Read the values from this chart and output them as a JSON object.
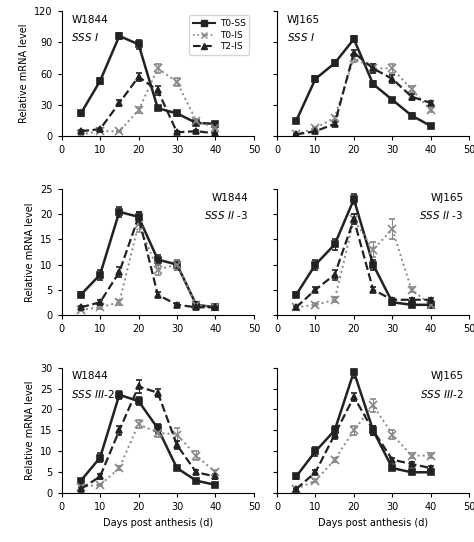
{
  "days": [
    5,
    10,
    15,
    20,
    25,
    30,
    35,
    40
  ],
  "panels": [
    {
      "title": "W1844",
      "gene_parts": [
        [
          "SSS ",
          "italic"
        ],
        [
          " I",
          "italic"
        ]
      ],
      "gene_display": "SSS I",
      "label_loc": "upper left",
      "ylim": [
        0,
        120
      ],
      "yticks": [
        0,
        30,
        60,
        90,
        120
      ],
      "series": {
        "T0-SS": [
          22,
          53,
          96,
          88,
          27,
          22,
          13,
          12
        ],
        "T0-IS": [
          2,
          5,
          5,
          25,
          65,
          52,
          15,
          8
        ],
        "T2-IS": [
          5,
          7,
          32,
          57,
          44,
          4,
          5,
          3
        ]
      },
      "errors": {
        "T0-SS": [
          2,
          3,
          3,
          4,
          2,
          2,
          1,
          1
        ],
        "T0-IS": [
          0.5,
          0.5,
          0.5,
          3,
          4,
          4,
          2,
          1
        ],
        "T2-IS": [
          1,
          1,
          3,
          4,
          4,
          1,
          1,
          0.5
        ]
      }
    },
    {
      "title": "WJ165",
      "gene_display": "SSS I",
      "label_loc": "upper left",
      "ylim": [
        0,
        120
      ],
      "yticks": [
        0,
        30,
        60,
        90,
        120
      ],
      "series": {
        "T0-SS": [
          15,
          55,
          70,
          93,
          50,
          35,
          20,
          10
        ],
        "T0-IS": [
          2,
          8,
          18,
          75,
          65,
          65,
          45,
          25
        ],
        "T2-IS": [
          2,
          5,
          12,
          80,
          65,
          55,
          38,
          32
        ]
      },
      "errors": {
        "T0-SS": [
          1,
          3,
          3,
          3,
          3,
          2,
          2,
          1
        ],
        "T0-IS": [
          0.5,
          1,
          2,
          4,
          4,
          4,
          3,
          2
        ],
        "T2-IS": [
          0.5,
          1,
          2,
          3,
          4,
          4,
          3,
          2
        ]
      }
    },
    {
      "title": "W1844",
      "gene_display": "SSS II -3",
      "label_loc": "upper right",
      "ylim": [
        0,
        25
      ],
      "yticks": [
        0,
        5,
        10,
        15,
        20,
        25
      ],
      "series": {
        "T0-SS": [
          4,
          8,
          20.5,
          19.5,
          11,
          10,
          2,
          1.5
        ],
        "T0-IS": [
          1,
          1.5,
          2.5,
          18,
          9,
          10,
          2,
          1.5
        ],
        "T2-IS": [
          1.5,
          2.5,
          8.5,
          19.5,
          4,
          2,
          1.5,
          1.5
        ]
      },
      "errors": {
        "T0-SS": [
          0.5,
          1,
          1,
          1,
          1,
          1,
          0.5,
          0.5
        ],
        "T0-IS": [
          0.2,
          0.3,
          0.5,
          1.5,
          1,
          1,
          0.3,
          0.3
        ],
        "T2-IS": [
          0.3,
          0.5,
          1,
          1,
          0.5,
          0.3,
          0.3,
          0.3
        ]
      }
    },
    {
      "title": "WJ165",
      "gene_display": "SSS II -3",
      "label_loc": "upper right",
      "ylim": [
        0,
        25
      ],
      "yticks": [
        0,
        5,
        10,
        15,
        20,
        25
      ],
      "series": {
        "T0-SS": [
          4,
          10,
          14,
          23,
          10,
          2.5,
          2,
          2
        ],
        "T0-IS": [
          1.5,
          2,
          3,
          19,
          13,
          17,
          5,
          2
        ],
        "T2-IS": [
          1.5,
          5,
          8,
          19,
          5,
          3,
          3,
          3
        ]
      },
      "errors": {
        "T0-SS": [
          0.5,
          1,
          1,
          1,
          1,
          0.5,
          0.3,
          0.3
        ],
        "T0-IS": [
          0.3,
          0.3,
          0.5,
          1,
          1.5,
          2,
          0.5,
          0.3
        ],
        "T2-IS": [
          0.3,
          0.5,
          1,
          1,
          0.5,
          0.3,
          0.3,
          0.3
        ]
      }
    },
    {
      "title": "W1844",
      "gene_display": "SSS III-2",
      "label_loc": "upper left",
      "ylim": [
        0,
        30
      ],
      "yticks": [
        0,
        5,
        10,
        15,
        20,
        25,
        30
      ],
      "series": {
        "T0-SS": [
          3,
          8.5,
          23.5,
          22,
          15.5,
          6,
          3,
          2
        ],
        "T0-IS": [
          1.5,
          2,
          6,
          16.5,
          14.5,
          14,
          9,
          5
        ],
        "T2-IS": [
          1,
          4,
          15,
          25.5,
          24,
          11.5,
          5,
          4
        ]
      },
      "errors": {
        "T0-SS": [
          0.5,
          1,
          1,
          1,
          1,
          0.5,
          0.3,
          0.3
        ],
        "T0-IS": [
          0.3,
          0.3,
          0.5,
          1,
          1,
          1.5,
          1,
          0.5
        ],
        "T2-IS": [
          0.3,
          0.5,
          1,
          1.5,
          1,
          1,
          0.5,
          0.5
        ]
      }
    },
    {
      "title": "WJ165",
      "gene_display": "SSS III-2",
      "label_loc": "upper right",
      "ylim": [
        0,
        30
      ],
      "yticks": [
        0,
        5,
        10,
        15,
        20,
        25,
        30
      ],
      "series": {
        "T0-SS": [
          4,
          10,
          15,
          29,
          15,
          6,
          5,
          5
        ],
        "T0-IS": [
          1,
          3,
          8,
          15,
          21,
          14,
          9,
          9
        ],
        "T2-IS": [
          1,
          5,
          14,
          23,
          15,
          8,
          7,
          6
        ]
      },
      "errors": {
        "T0-SS": [
          0.5,
          1,
          1,
          1.5,
          1,
          0.5,
          0.5,
          0.5
        ],
        "T0-IS": [
          0.2,
          0.3,
          0.5,
          1,
          1.5,
          1,
          0.5,
          0.5
        ],
        "T2-IS": [
          0.3,
          0.5,
          1,
          1,
          1,
          0.5,
          0.5,
          0.5
        ]
      }
    }
  ],
  "series_styles": {
    "T0-SS": {
      "color": "#222222",
      "linestyle": "-",
      "marker": "s",
      "linewidth": 1.8,
      "markersize": 4.5,
      "mfc": "#222222"
    },
    "T0-IS": {
      "color": "#888888",
      "linestyle": ":",
      "marker": "x",
      "linewidth": 1.4,
      "markersize": 5.5,
      "mfc": "none"
    },
    "T2-IS": {
      "color": "#222222",
      "linestyle": "--",
      "marker": "^",
      "linewidth": 1.6,
      "markersize": 4.5,
      "mfc": "#222222"
    }
  },
  "xlabel": "Days post anthesis (d)",
  "ylabel": "Relative mRNA level",
  "legend_labels": [
    "T0-SS",
    "T0-IS",
    "T2-IS"
  ],
  "xlim": [
    0,
    50
  ],
  "xticks": [
    0,
    10,
    20,
    30,
    40,
    50
  ]
}
